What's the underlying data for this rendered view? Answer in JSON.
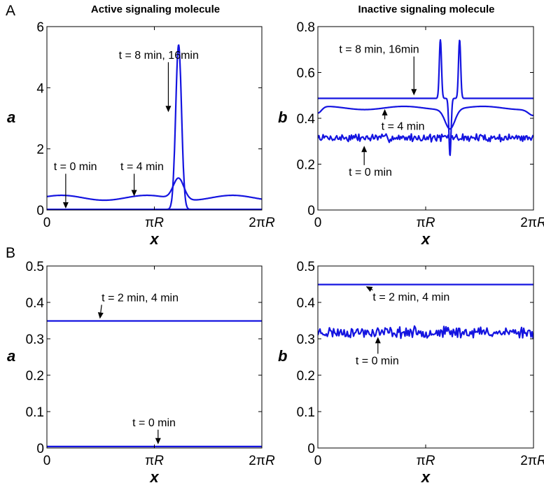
{
  "figure": {
    "row_labels": [
      "A",
      "B"
    ],
    "column_titles": [
      "Active signaling molecule",
      "Inactive signaling molecule"
    ]
  },
  "chart_data": [
    {
      "id": "A-left",
      "type": "line",
      "title": "Active signaling molecule",
      "row_label": "A",
      "xlabel": "x",
      "ylabel": "a",
      "xlim": [
        0,
        6.2832
      ],
      "ylim": [
        0,
        6
      ],
      "xticks": [
        0,
        3.1416,
        6.2832
      ],
      "xtick_labels": [
        "0",
        "πR",
        "2πR"
      ],
      "yticks": [
        0,
        2,
        4,
        6
      ],
      "ytick_labels": [
        "0",
        "2",
        "4",
        "6"
      ],
      "grid": false,
      "series": [
        {
          "kind": "flat",
          "level": 0.02
        },
        {
          "kind": "wavy",
          "base": 0.4,
          "amp": 0.08,
          "period": 2.5,
          "phase": 0.5,
          "peak_x": 3.85,
          "peak_height": 0.7,
          "peak_width": 0.22
        },
        {
          "kind": "peak",
          "base": 0.02,
          "peak_x": 3.85,
          "peak_height": 5.38,
          "peak_width": 0.12
        }
      ],
      "annotations": [
        {
          "text": "t = 8 min, 16min",
          "x": 2.1,
          "y": 4.95,
          "target_x": 3.55,
          "target_y": 3.2
        },
        {
          "text": "t = 0 min",
          "x": 0.2,
          "y": 1.3,
          "target_x": 0.55,
          "target_y": 0.05
        },
        {
          "text": "t = 4 min",
          "x": 2.15,
          "y": 1.3,
          "target_x": 2.55,
          "target_y": 0.45
        }
      ]
    },
    {
      "id": "A-right",
      "type": "line",
      "title": "Inactive signaling molecule",
      "row_label": "A",
      "xlabel": "x",
      "ylabel": "b",
      "xlim": [
        0,
        6.2832
      ],
      "ylim": [
        0,
        0.8
      ],
      "xticks": [
        0,
        3.1416,
        6.2832
      ],
      "xtick_labels": [
        "0",
        "πR",
        "2πR"
      ],
      "yticks": [
        0,
        0.2,
        0.4,
        0.6,
        0.8
      ],
      "ytick_labels": [
        "0",
        "0.2",
        "0.4",
        "0.6",
        "0.8"
      ],
      "grid": false,
      "series": [
        {
          "kind": "noisy",
          "base": 0.315,
          "amp": 0.014,
          "seed": 7
        },
        {
          "kind": "wavy_dip",
          "base": 0.445,
          "amp": 0.007,
          "period": 2.3,
          "phase": 1.0,
          "dip_x": 3.85,
          "dip_depth": 0.085,
          "dip_width": 0.2,
          "edge_drop": 0.028
        },
        {
          "kind": "double_peak",
          "base": 0.487,
          "peak_x": 3.85,
          "sep": 0.28,
          "peak_height": 0.255,
          "peak_width": 0.045,
          "dip_depth": 0.25,
          "dip_width": 0.045
        }
      ],
      "annotations": [
        {
          "text": "t = 8 min, 16min",
          "x": 0.62,
          "y": 0.685,
          "target_x": 2.8,
          "target_y": 0.5
        },
        {
          "text": "t = 4 min",
          "x": 1.85,
          "y": 0.35,
          "target_x": 1.95,
          "target_y": 0.44
        },
        {
          "text": "t = 0 min",
          "x": 0.9,
          "y": 0.15,
          "target_x": 1.35,
          "target_y": 0.28
        }
      ]
    },
    {
      "id": "B-left",
      "type": "line",
      "title": "",
      "row_label": "B",
      "xlabel": "x",
      "ylabel": "a",
      "xlim": [
        0,
        6.2832
      ],
      "ylim": [
        0,
        0.5
      ],
      "xticks": [
        0,
        3.1416,
        6.2832
      ],
      "xtick_labels": [
        "0",
        "πR",
        "2πR"
      ],
      "yticks": [
        0,
        0.1,
        0.2,
        0.3,
        0.4,
        0.5
      ],
      "ytick_labels": [
        "0",
        "0.1",
        "0.2",
        "0.3",
        "0.4",
        "0.5"
      ],
      "grid": false,
      "series": [
        {
          "kind": "flat",
          "level": 0.349
        },
        {
          "kind": "flat",
          "level": 0.004
        }
      ],
      "annotations": [
        {
          "text": "t = 2 min, 4 min",
          "x": 1.6,
          "y": 0.403,
          "target_x": 1.55,
          "target_y": 0.355
        },
        {
          "text": "t = 0 min",
          "x": 2.5,
          "y": 0.06,
          "target_x": 3.25,
          "target_y": 0.01
        }
      ]
    },
    {
      "id": "B-right",
      "type": "line",
      "title": "",
      "row_label": "B",
      "xlabel": "x",
      "ylabel": "b",
      "xlim": [
        0,
        6.2832
      ],
      "ylim": [
        0,
        0.5
      ],
      "xticks": [
        0,
        3.1416,
        6.2832
      ],
      "xtick_labels": [
        "0",
        "πR",
        "2πR"
      ],
      "yticks": [
        0,
        0.1,
        0.2,
        0.3,
        0.4,
        0.5
      ],
      "ytick_labels": [
        "0",
        "0.1",
        "0.2",
        "0.3",
        "0.4",
        "0.5"
      ],
      "grid": false,
      "series": [
        {
          "kind": "flat",
          "level": 0.449
        },
        {
          "kind": "noisy",
          "base": 0.318,
          "amp": 0.012,
          "seed": 23
        }
      ],
      "annotations": [
        {
          "text": "t = 2 min, 4 min",
          "x": 1.6,
          "y": 0.405,
          "target_x": 1.4,
          "target_y": 0.444
        },
        {
          "text": "t = 0 min",
          "x": 1.1,
          "y": 0.23,
          "target_x": 1.75,
          "target_y": 0.305
        }
      ]
    }
  ]
}
